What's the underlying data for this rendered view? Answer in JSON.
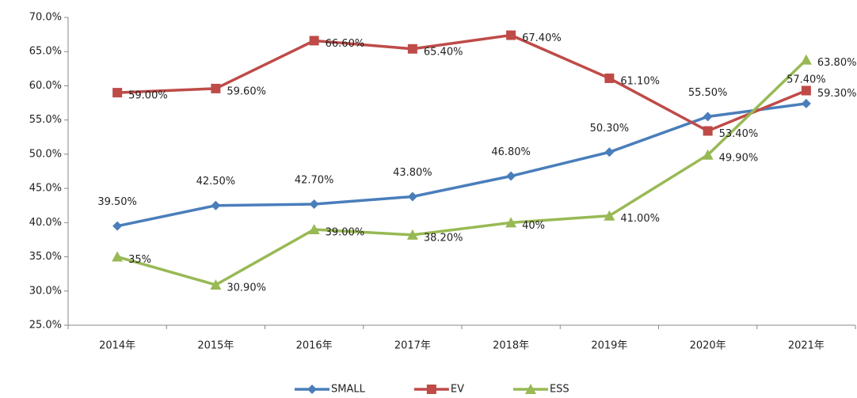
{
  "chart_data": {
    "type": "line",
    "categories": [
      "2014年",
      "2015年",
      "2016年",
      "2017年",
      "2018年",
      "2019年",
      "2020年",
      "2021年"
    ],
    "series": [
      {
        "name": "SMALL",
        "color": "#4a7ebb",
        "marker": "diamond",
        "values": [
          39.5,
          42.5,
          42.7,
          43.8,
          46.8,
          50.3,
          55.5,
          57.4
        ],
        "value_labels": [
          "39.50%",
          "42.50%",
          "42.70%",
          "43.80%",
          "46.80%",
          "50.30%",
          "55.50%",
          "57.40%"
        ]
      },
      {
        "name": "EV",
        "color": "#be4b48",
        "marker": "square",
        "values": [
          59.0,
          59.6,
          66.6,
          65.4,
          67.4,
          61.1,
          53.4,
          59.3
        ],
        "value_labels": [
          "59.00%",
          "59.60%",
          "66.60%",
          "65.40%",
          "67.40%",
          "61.10%",
          "53.40%",
          "59.30%"
        ]
      },
      {
        "name": "ESS",
        "color": "#98b954",
        "marker": "triangle",
        "values": [
          35,
          30.9,
          39.0,
          38.2,
          40,
          41.0,
          49.9,
          63.8
        ],
        "value_labels": [
          "35%",
          "30.90%",
          "39.00%",
          "38.20%",
          "40%",
          "41.00%",
          "49.90%",
          "63.80%"
        ]
      }
    ],
    "ylim": [
      25,
      70
    ],
    "yticks": [
      {
        "value": 25,
        "label": "25.0%"
      },
      {
        "value": 30,
        "label": "30.0%"
      },
      {
        "value": 35,
        "label": "35.0%"
      },
      {
        "value": 40,
        "label": "40.0%"
      },
      {
        "value": 45,
        "label": "45.0%"
      },
      {
        "value": 50,
        "label": "50.0%"
      },
      {
        "value": 55,
        "label": "55.0%"
      },
      {
        "value": 60,
        "label": "60.0%"
      },
      {
        "value": 65,
        "label": "65.0%"
      },
      {
        "value": 70,
        "label": "70.0%"
      }
    ],
    "grid": false,
    "legend": "bottom"
  }
}
